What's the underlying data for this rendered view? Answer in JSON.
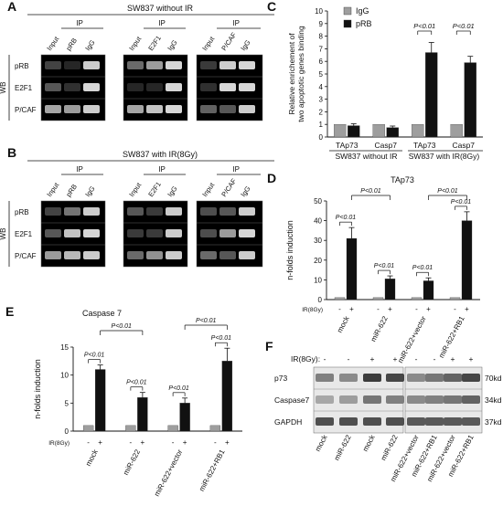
{
  "panels": {
    "A": {
      "letter": "A",
      "title": "SW837 without IR",
      "groups": [
        {
          "ip": "IP",
          "lanes": [
            "Input",
            "pRB",
            "IgG"
          ]
        },
        {
          "ip": "IP",
          "lanes": [
            "Input",
            "E2F1",
            "IgG"
          ]
        },
        {
          "ip": "IP",
          "lanes": [
            "Input",
            "P/CAF",
            "IgG"
          ]
        }
      ],
      "rows": [
        "pRB",
        "E2F1",
        "P/CAF"
      ],
      "wb": "WB"
    },
    "B": {
      "letter": "B",
      "title": "SW837 with IR(8Gy)",
      "groups": [
        {
          "ip": "IP",
          "lanes": [
            "Input",
            "pRB",
            "IgG"
          ]
        },
        {
          "ip": "IP",
          "lanes": [
            "Input",
            "E2F1",
            "IgG"
          ]
        },
        {
          "ip": "IP",
          "lanes": [
            "Input",
            "P/CAF",
            "IgG"
          ]
        }
      ],
      "rows": [
        "pRB",
        "E2F1",
        "P/CAF"
      ],
      "wb": "WB"
    },
    "F": {
      "letter": "F",
      "ir_label": "IR(8Gy):",
      "ir_signs": [
        "-",
        "-",
        "+",
        "+",
        "-",
        "-",
        "+",
        "+"
      ],
      "rows": [
        "p73",
        "Caspase7",
        "GAPDH"
      ],
      "sizes": [
        "70kd",
        "34kd",
        "37kd"
      ],
      "lanes": [
        "mock",
        "miR-622",
        "mock",
        "miR-622",
        "miR-622+vector",
        "miR-622+RB1",
        "miR-622+vector",
        "miR-622+RB1"
      ]
    }
  },
  "chart_data": [
    {
      "panel": "C",
      "type": "bar",
      "ylabel": "Relative enrichement of two apoptotic genes binding",
      "ylim": [
        0,
        10
      ],
      "yticks": [
        0,
        1,
        2,
        3,
        4,
        5,
        6,
        7,
        8,
        9,
        10
      ],
      "categories": [
        "TAp73",
        "Casp7",
        "TAp73",
        "Casp7"
      ],
      "groups": [
        "SW837 without IR",
        "SW837 with IR(8Gy)"
      ],
      "series": [
        {
          "name": "IgG",
          "values": [
            1.0,
            1.0,
            1.0,
            1.0
          ],
          "errors": [
            0,
            0,
            0,
            0
          ],
          "color": "#9e9e9e"
        },
        {
          "name": "pRB",
          "values": [
            0.9,
            0.75,
            6.7,
            5.9
          ],
          "errors": [
            0.15,
            0.12,
            0.8,
            0.5
          ],
          "color": "#111111"
        }
      ],
      "annotations": [
        "P<0.01",
        "P<0.01"
      ]
    },
    {
      "panel": "D",
      "type": "bar",
      "title": "TAp73",
      "ylabel": "n-folds induction",
      "ylim": [
        0,
        50
      ],
      "yticks": [
        0,
        10,
        20,
        30,
        40,
        50
      ],
      "ir_label": "IR(8Gy)",
      "ir_signs": [
        "-",
        "+"
      ],
      "categories": [
        "mock",
        "miR-622",
        "miR-622+vector",
        "miR-622+RB1"
      ],
      "series": [
        {
          "name": "-",
          "values": [
            1,
            1,
            1,
            1
          ],
          "errors": [
            0,
            0,
            0,
            0
          ],
          "color": "#9e9e9e"
        },
        {
          "name": "+",
          "values": [
            31,
            10.5,
            9.5,
            40
          ],
          "errors": [
            5.5,
            1.5,
            1.5,
            4.5
          ],
          "color": "#111111"
        }
      ],
      "annotations": [
        "P<0.01",
        "P<0.01",
        "P<0.01",
        "P<0.01",
        "P<0.01",
        "P<0.01"
      ]
    },
    {
      "panel": "E",
      "type": "bar",
      "title": "Caspase 7",
      "ylabel": "n-folds induction",
      "ylim": [
        0,
        15
      ],
      "yticks": [
        0,
        5,
        10,
        15
      ],
      "ir_label": "IR(8Gy)",
      "ir_signs": [
        "-",
        "+"
      ],
      "categories": [
        "mock",
        "miR-622",
        "miR-622+vector",
        "miR-622+RB1"
      ],
      "series": [
        {
          "name": "-",
          "values": [
            1,
            1,
            1,
            1
          ],
          "errors": [
            0,
            0,
            0,
            0
          ],
          "color": "#9e9e9e"
        },
        {
          "name": "+",
          "values": [
            11,
            6,
            5,
            12.5
          ],
          "errors": [
            0.8,
            0.9,
            0.9,
            2.3
          ],
          "color": "#111111"
        }
      ],
      "annotations": [
        "P<0.01",
        "P<0.01",
        "P<0.01",
        "P<0.01",
        "P<0.01",
        "P<0.01"
      ]
    }
  ]
}
